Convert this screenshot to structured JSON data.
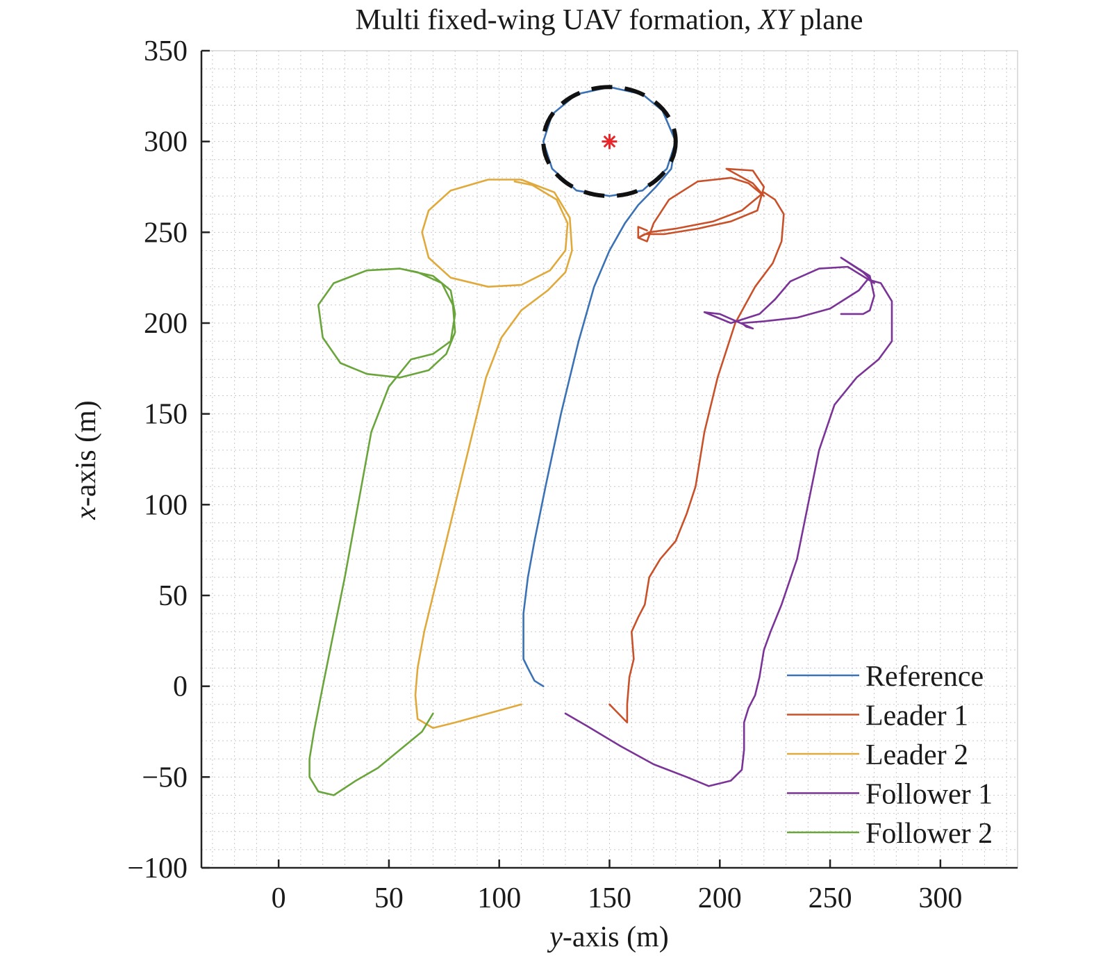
{
  "chart_data": {
    "type": "line",
    "title_main": "Multi fixed-wing UAV formation, ",
    "title_italic": "XY",
    "title_end": " plane",
    "xlabel_italic": "y",
    "xlabel_rest": "-axis (m)",
    "ylabel_italic": "x",
    "ylabel_rest": "-axis (m)",
    "xlim": [
      -35,
      335
    ],
    "ylim": [
      -100,
      350
    ],
    "xticks": [
      0,
      50,
      100,
      150,
      200,
      250,
      300
    ],
    "yticks": [
      -100,
      -50,
      0,
      50,
      100,
      150,
      200,
      250,
      300,
      350
    ],
    "xtick_labels": [
      "0",
      "50",
      "100",
      "150",
      "200",
      "250",
      "300"
    ],
    "ytick_labels": [
      "−100",
      "−50",
      "0",
      "50",
      "100",
      "150",
      "200",
      "250",
      "300",
      "350"
    ],
    "grid": true,
    "legend_position": "bottom-right",
    "target": {
      "name": "Target",
      "x": 150,
      "y": 300,
      "radius": 30,
      "color": "#e8262a",
      "circle_color": "#111111"
    },
    "series": [
      {
        "name": "Reference",
        "color": "#3a72b5",
        "points": [
          [
            120,
            0
          ],
          [
            116,
            3
          ],
          [
            113,
            10
          ],
          [
            111,
            15
          ],
          [
            111,
            25
          ],
          [
            111,
            40
          ],
          [
            113,
            60
          ],
          [
            116,
            80
          ],
          [
            121,
            110
          ],
          [
            128,
            150
          ],
          [
            136,
            190
          ],
          [
            143,
            220
          ],
          [
            150,
            240
          ],
          [
            157,
            255
          ],
          [
            163,
            265
          ],
          [
            171,
            275
          ],
          [
            178,
            285
          ],
          [
            180,
            300
          ],
          [
            174,
            317
          ],
          [
            165,
            326
          ],
          [
            150,
            330
          ],
          [
            135,
            326
          ],
          [
            124,
            315
          ],
          [
            120,
            300
          ],
          [
            124,
            285
          ],
          [
            135,
            273
          ],
          [
            150,
            270
          ],
          [
            165,
            273
          ],
          [
            176,
            285
          ],
          [
            180,
            300
          ]
        ]
      },
      {
        "name": "Leader 1",
        "color": "#c9512a",
        "points": [
          [
            150,
            -10
          ],
          [
            154,
            -15
          ],
          [
            158,
            -20
          ],
          [
            158,
            -10
          ],
          [
            159,
            5
          ],
          [
            161,
            15
          ],
          [
            160,
            30
          ],
          [
            163,
            38
          ],
          [
            166,
            45
          ],
          [
            168,
            60
          ],
          [
            173,
            70
          ],
          [
            180,
            80
          ],
          [
            185,
            95
          ],
          [
            189,
            110
          ],
          [
            193,
            140
          ],
          [
            199,
            170
          ],
          [
            207,
            200
          ],
          [
            216,
            220
          ],
          [
            224,
            233
          ],
          [
            228,
            245
          ],
          [
            229,
            260
          ],
          [
            225,
            268
          ],
          [
            220,
            272
          ],
          [
            210,
            262
          ],
          [
            197,
            256
          ],
          [
            180,
            252
          ],
          [
            168,
            250
          ],
          [
            163,
            247
          ],
          [
            167,
            245
          ],
          [
            170,
            255
          ],
          [
            177,
            268
          ],
          [
            190,
            278
          ],
          [
            205,
            280
          ],
          [
            213,
            277
          ],
          [
            218,
            272
          ],
          [
            220,
            270
          ],
          [
            215,
            277
          ],
          [
            203,
            285
          ],
          [
            215,
            284
          ],
          [
            220,
            275
          ],
          [
            217,
            262
          ],
          [
            205,
            256
          ],
          [
            190,
            252
          ],
          [
            175,
            249
          ],
          [
            166,
            249
          ],
          [
            163,
            247
          ],
          [
            163,
            253
          ],
          [
            167,
            251
          ]
        ]
      },
      {
        "name": "Leader 2",
        "color": "#e0a93b",
        "points": [
          [
            110,
            -10
          ],
          [
            95,
            -15
          ],
          [
            80,
            -20
          ],
          [
            70,
            -23
          ],
          [
            63,
            -18
          ],
          [
            62,
            -5
          ],
          [
            63,
            10
          ],
          [
            66,
            30
          ],
          [
            72,
            60
          ],
          [
            80,
            100
          ],
          [
            88,
            140
          ],
          [
            94,
            170
          ],
          [
            101,
            192
          ],
          [
            110,
            207
          ],
          [
            122,
            218
          ],
          [
            130,
            228
          ],
          [
            133,
            240
          ],
          [
            132,
            258
          ],
          [
            125,
            272
          ],
          [
            110,
            279
          ],
          [
            95,
            279
          ],
          [
            78,
            273
          ],
          [
            68,
            262
          ],
          [
            65,
            250
          ],
          [
            68,
            236
          ],
          [
            78,
            225
          ],
          [
            95,
            220
          ],
          [
            110,
            221
          ],
          [
            123,
            229
          ],
          [
            130,
            240
          ],
          [
            131,
            255
          ],
          [
            126,
            268
          ],
          [
            115,
            276
          ],
          [
            107,
            278
          ]
        ]
      },
      {
        "name": "Follower 1",
        "color": "#7a3396",
        "points": [
          [
            130,
            -15
          ],
          [
            140,
            -22
          ],
          [
            155,
            -33
          ],
          [
            170,
            -43
          ],
          [
            185,
            -50
          ],
          [
            195,
            -55
          ],
          [
            205,
            -52
          ],
          [
            210,
            -46
          ],
          [
            211,
            -35
          ],
          [
            211,
            -20
          ],
          [
            213,
            -12
          ],
          [
            216,
            -5
          ],
          [
            218,
            5
          ],
          [
            220,
            20
          ],
          [
            223,
            30
          ],
          [
            228,
            45
          ],
          [
            235,
            70
          ],
          [
            240,
            100
          ],
          [
            245,
            130
          ],
          [
            252,
            155
          ],
          [
            262,
            170
          ],
          [
            272,
            180
          ],
          [
            278,
            190
          ],
          [
            278,
            200
          ],
          [
            278,
            212
          ],
          [
            273,
            222
          ],
          [
            267,
            224
          ],
          [
            263,
            218
          ],
          [
            250,
            208
          ],
          [
            235,
            203
          ],
          [
            220,
            201
          ],
          [
            210,
            200
          ],
          [
            212,
            198
          ],
          [
            215,
            197
          ],
          [
            200,
            205
          ],
          [
            193,
            206
          ],
          [
            205,
            200
          ],
          [
            218,
            205
          ],
          [
            225,
            213
          ],
          [
            232,
            223
          ],
          [
            245,
            230
          ],
          [
            258,
            231
          ],
          [
            270,
            222
          ],
          [
            265,
            228
          ],
          [
            255,
            236
          ],
          [
            268,
            226
          ],
          [
            270,
            215
          ],
          [
            268,
            207
          ],
          [
            265,
            205
          ],
          [
            255,
            205
          ]
        ]
      },
      {
        "name": "Follower 2",
        "color": "#6aa53c",
        "points": [
          [
            70,
            -15
          ],
          [
            65,
            -25
          ],
          [
            55,
            -35
          ],
          [
            45,
            -45
          ],
          [
            35,
            -52
          ],
          [
            25,
            -60
          ],
          [
            18,
            -58
          ],
          [
            14,
            -50
          ],
          [
            14,
            -40
          ],
          [
            16,
            -25
          ],
          [
            20,
            0
          ],
          [
            25,
            30
          ],
          [
            30,
            60
          ],
          [
            36,
            100
          ],
          [
            42,
            140
          ],
          [
            50,
            165
          ],
          [
            60,
            180
          ],
          [
            70,
            183
          ],
          [
            78,
            190
          ],
          [
            80,
            205
          ],
          [
            78,
            218
          ],
          [
            70,
            226
          ],
          [
            55,
            230
          ],
          [
            40,
            229
          ],
          [
            25,
            222
          ],
          [
            18,
            210
          ],
          [
            20,
            192
          ],
          [
            28,
            178
          ],
          [
            40,
            172
          ],
          [
            55,
            170
          ],
          [
            68,
            174
          ],
          [
            76,
            183
          ],
          [
            80,
            195
          ],
          [
            79,
            210
          ],
          [
            74,
            222
          ],
          [
            63,
            228
          ],
          [
            55,
            230
          ]
        ]
      }
    ]
  }
}
